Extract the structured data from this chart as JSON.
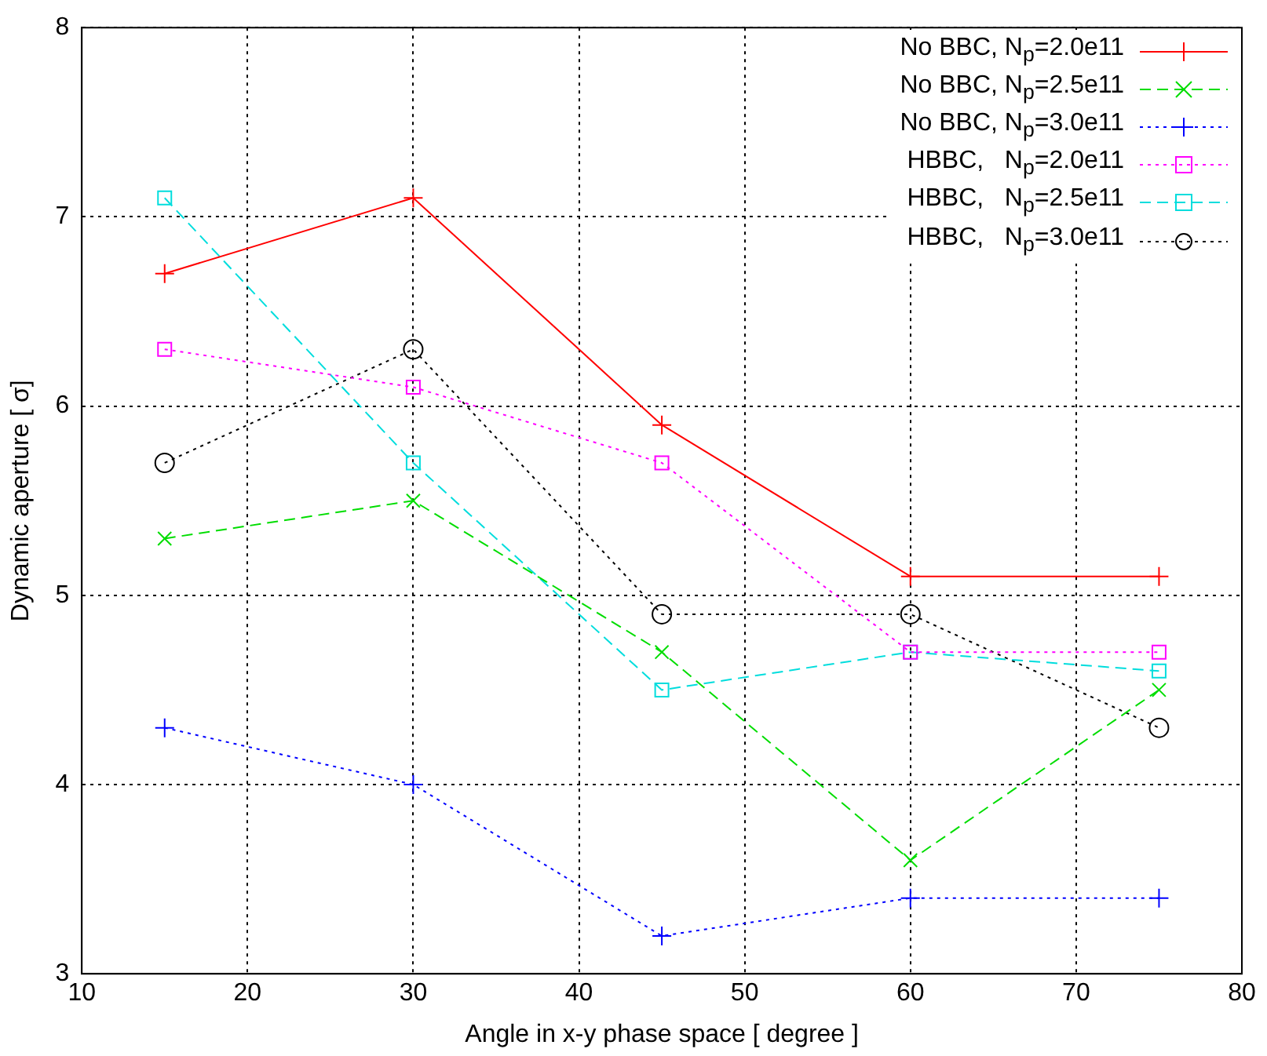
{
  "chart_data": {
    "type": "line",
    "xlabel": "Angle in x-y phase space [ degree ]",
    "ylabel": "Dynamic aperture [ σ]",
    "x": [
      15,
      30,
      45,
      60,
      75
    ],
    "xlim": [
      10,
      80
    ],
    "xticks": [
      10,
      20,
      30,
      40,
      50,
      60,
      70,
      80
    ],
    "ylim": [
      3,
      8
    ],
    "yticks": [
      3,
      4,
      5,
      6,
      7,
      8
    ],
    "grid": true,
    "legend": "top right",
    "series": [
      {
        "name": "No BBC, N$_{p}$=2.0e11",
        "color": "#ff0000",
        "marker": "cross",
        "line_style": "solid",
        "values": [
          6.7,
          7.1,
          5.9,
          5.1,
          5.1
        ]
      },
      {
        "name": "No BBC, N$_{p}$=2.5e11",
        "color": "#00dd00",
        "marker": "x",
        "line_style": "dashed",
        "values": [
          5.3,
          5.5,
          4.7,
          3.6,
          4.5
        ]
      },
      {
        "name": "No BBC, N$_{p}$=3.0e11",
        "color": "#0000ff",
        "marker": "cross",
        "line_style": "dotted",
        "values": [
          4.3,
          4.0,
          3.2,
          3.4,
          3.4
        ]
      },
      {
        "name": "HBBC,   N$_{p}$=2.0e11",
        "color": "#ff00ff",
        "marker": "square",
        "line_style": "dotted",
        "values": [
          6.3,
          6.1,
          5.7,
          4.7,
          4.7
        ]
      },
      {
        "name": "HBBC,   N$_{p}$=2.5e11",
        "color": "#00dddd",
        "marker": "square",
        "line_style": "dashed",
        "values": [
          7.1,
          5.7,
          4.5,
          4.7,
          4.6
        ]
      },
      {
        "name": "HBBC,   N$_{p}$=3.0e11",
        "color": "#000000",
        "marker": "circle",
        "line_style": "dotted",
        "values": [
          5.7,
          6.3,
          4.9,
          4.9,
          4.3
        ]
      }
    ]
  }
}
